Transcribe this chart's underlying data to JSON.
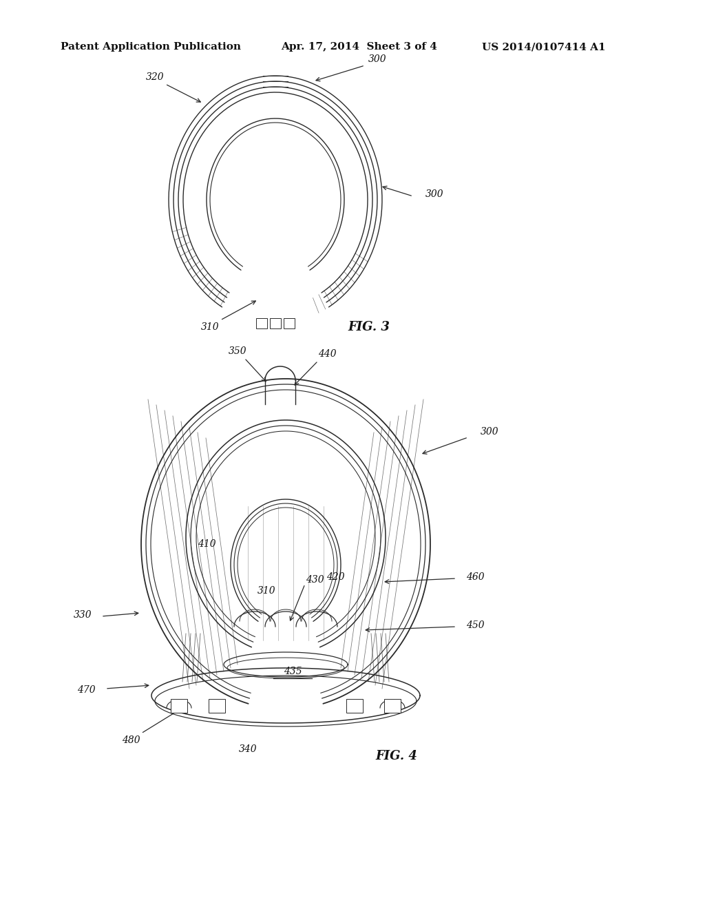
{
  "background_color": "#ffffff",
  "header_left": "Patent Application Publication",
  "header_center": "Apr. 17, 2014  Sheet 3 of 4",
  "header_right": "US 2014/0107414 A1",
  "line_color": "#2a2a2a",
  "text_color": "#111111",
  "annotation_fontsize": 10,
  "fig_label_fontsize": 13,
  "fig3_label": "FIG. 3",
  "fig4_label": "FIG. 4"
}
